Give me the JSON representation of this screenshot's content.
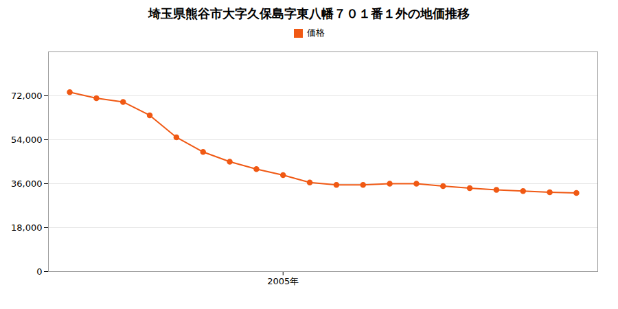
{
  "chart_data": {
    "type": "line",
    "title": "埼玉県熊谷市大字久保島字東八幡７０１番１外の地価推移",
    "x": [
      1997,
      1998,
      1999,
      2000,
      2001,
      2002,
      2003,
      2004,
      2005,
      2006,
      2007,
      2008,
      2009,
      2010,
      2011,
      2012,
      2013,
      2014,
      2015,
      2016
    ],
    "series": [
      {
        "name": "価格",
        "color": "#f05914",
        "marker": "circle",
        "line_style": "solid",
        "values": [
          73500,
          71000,
          69500,
          64000,
          55000,
          49000,
          45000,
          42000,
          39500,
          36500,
          35500,
          35500,
          36000,
          36000,
          35000,
          34200,
          33500,
          33000,
          32500,
          32200
        ]
      }
    ],
    "xlim": [
      1996.2,
      2016.8
    ],
    "xticks": [
      {
        "value": 2005,
        "label": "2005年"
      }
    ],
    "ylim": [
      0,
      90000
    ],
    "yticks": [
      0,
      {
        "value": 18000,
        "label": "18,000"
      },
      {
        "value": 36000,
        "label": "36,000"
      },
      {
        "value": 54000,
        "label": "54,000"
      },
      {
        "value": 72000,
        "label": "72,000"
      }
    ],
    "grid": true,
    "legend": "top"
  }
}
